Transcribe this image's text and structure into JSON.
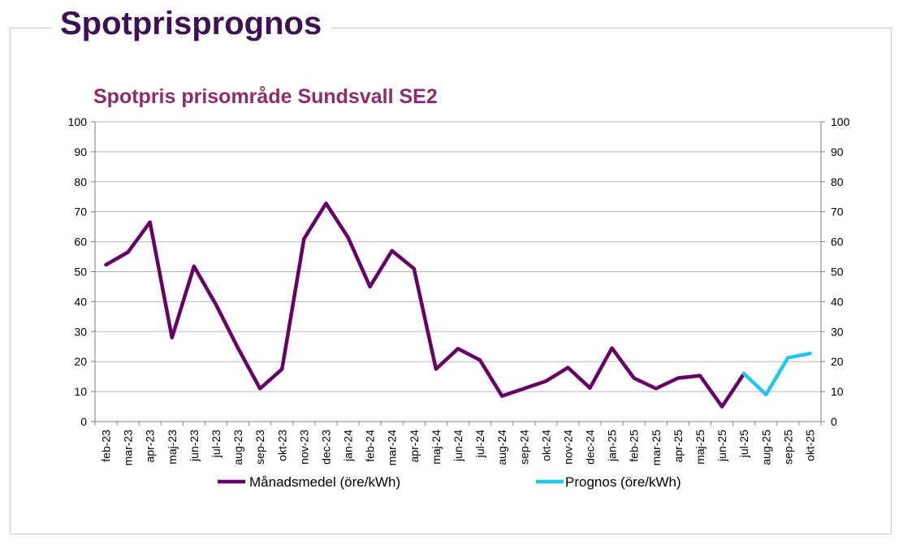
{
  "page": {
    "title": "Spotprisprognos"
  },
  "colors": {
    "title": "#3d1152",
    "chart_title": "#8c2c6c",
    "series_monthly": "#660066",
    "series_forecast": "#1ec6f0",
    "grid": "#b7b7b7"
  },
  "chart_data": {
    "type": "line",
    "title": "Spotpris prisområde Sundsvall SE2",
    "xlabel": "",
    "ylabel": "",
    "ylim": [
      0,
      100
    ],
    "yticks": [
      0,
      10,
      20,
      30,
      40,
      50,
      60,
      70,
      80,
      90,
      100
    ],
    "y_axes": "left-and-right",
    "grid": "horizontal",
    "legend_position": "bottom",
    "categories": [
      "feb-23",
      "mar-23",
      "apr-23",
      "maj-23",
      "jun-23",
      "jul-23",
      "aug-23",
      "sep-23",
      "okt-23",
      "nov-23",
      "dec-23",
      "jan-24",
      "feb-24",
      "mar-24",
      "apr-24",
      "maj-24",
      "jun-24",
      "jul-24",
      "aug-24",
      "sep-24",
      "okt-24",
      "nov-24",
      "dec-24",
      "jan-25",
      "feb-25",
      "mar-25",
      "apr-25",
      "maj-25",
      "jun-25",
      "jul-25",
      "aug-25",
      "sep-25",
      "okt-25"
    ],
    "series": [
      {
        "name": "Månadsmedel (öre/kWh)",
        "values": [
          52.3,
          56.5,
          66.5,
          28,
          51.8,
          39,
          24.5,
          11,
          17.5,
          61,
          72.8,
          61.5,
          45,
          57,
          51,
          17.5,
          24.3,
          20.5,
          8.5,
          11,
          13.5,
          18,
          11.2,
          24.5,
          14.5,
          11,
          14.5,
          15.3,
          5,
          16,
          null,
          null,
          null
        ]
      },
      {
        "name": "Prognos (öre/kWh)",
        "values": [
          null,
          null,
          null,
          null,
          null,
          null,
          null,
          null,
          null,
          null,
          null,
          null,
          null,
          null,
          null,
          null,
          null,
          null,
          null,
          null,
          null,
          null,
          null,
          null,
          null,
          null,
          null,
          null,
          null,
          16,
          9,
          21.3,
          22.7
        ]
      }
    ]
  }
}
